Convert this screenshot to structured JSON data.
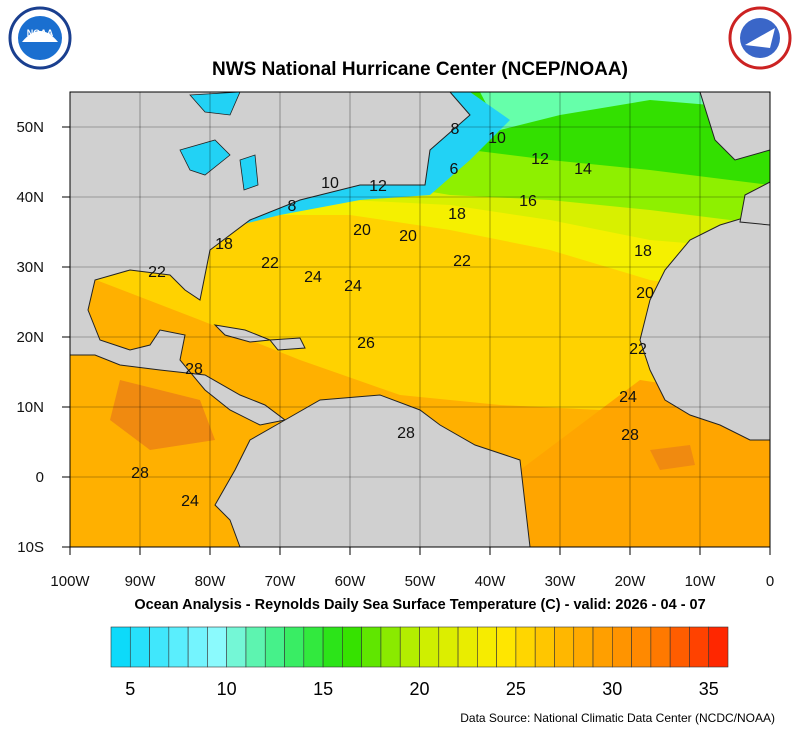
{
  "header": {
    "title": "NWS National Hurricane Center (NCEP/NOAA)"
  },
  "map": {
    "lon_labels": [
      "100W",
      "90W",
      "80W",
      "70W",
      "60W",
      "50W",
      "40W",
      "30W",
      "20W",
      "10W",
      "0"
    ],
    "lat_labels": [
      "50N",
      "40N",
      "30N",
      "20N",
      "10N",
      "0",
      "10S"
    ],
    "contour_labels": [
      8,
      10,
      12,
      14,
      6,
      10,
      12,
      8,
      16,
      18,
      20,
      20,
      18,
      22,
      22,
      24,
      22,
      18,
      24,
      20,
      26,
      22,
      28,
      24,
      28,
      28,
      28,
      24
    ]
  },
  "caption": "Ocean Analysis - Reynolds Daily Sea Surface Temperature (C) - valid: 2026 - 04 - 07",
  "colorbar": {
    "ticks": [
      5,
      10,
      15,
      20,
      25,
      30,
      35
    ],
    "range": [
      4,
      36
    ]
  },
  "source": "Data Source: National Climatic Data Center (NCDC/NOAA)"
}
